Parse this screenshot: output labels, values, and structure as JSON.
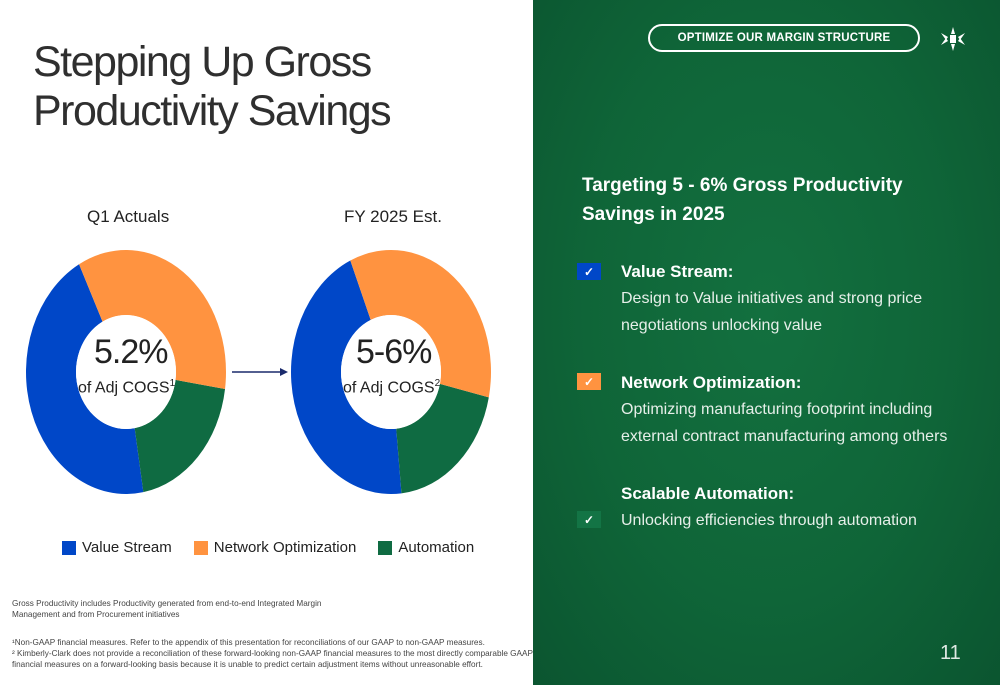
{
  "slide": {
    "title_line1": "Stepping Up Gross",
    "title_line2": "Productivity Savings",
    "page_number": "11"
  },
  "colors": {
    "value_stream": "#0047c8",
    "network_optimization": "#ff9340",
    "automation": "#0f6b42",
    "panel_green": "#0f6538"
  },
  "chart_data": [
    {
      "type": "pie",
      "title": "Q1 Actuals",
      "center_value": "5.2%",
      "center_label": "of Adj COGS",
      "footnote_marker": "1",
      "categories": [
        "Value Stream",
        "Network Optimization",
        "Automation"
      ],
      "values": [
        45,
        35,
        20
      ]
    },
    {
      "type": "pie",
      "title": "FY 2025 Est.",
      "center_value": "5-6%",
      "center_label": "of Adj COGS",
      "footnote_marker": "2",
      "categories": [
        "Value Stream",
        "Network Optimization",
        "Automation"
      ],
      "values": [
        45,
        35,
        20
      ]
    }
  ],
  "legend": [
    "Value Stream",
    "Network Optimization",
    "Automation"
  ],
  "footnotes": {
    "gross_productivity": "Gross Productivity includes Productivity generated from end-to-end Integrated Margin",
    "gross_productivity_2": "Management and from Procurement initiatives",
    "note1": "¹Non-GAAP financial measures. Refer to the appendix of this presentation for reconciliations of our GAAP to non-GAAP measures.",
    "note2": "² Kimberly-Clark does not provide a reconciliation of these forward-looking non-GAAP financial measures to the most directly comparable GAAP",
    "note2b": "financial measures on a forward-looking basis because it is unable to predict certain adjustment items without unreasonable effort."
  },
  "panel": {
    "pill_label": "OPTIMIZE OUR MARGIN STRUCTURE",
    "logo_icon": "kimberly-clark-logo-icon",
    "heading": "Targeting 5 - 6% Gross Productivity Savings in 2025",
    "items": [
      {
        "title": "Value Stream:",
        "desc": "Design to Value initiatives and strong price negotiations unlocking value",
        "check_icon": "check-icon"
      },
      {
        "title": "Network Optimization:",
        "desc": "Optimizing manufacturing footprint including external contract manufacturing among others",
        "check_icon": "check-icon"
      },
      {
        "title": "Scalable Automation:",
        "desc": "Unlocking efficiencies through automation",
        "check_icon": "check-icon"
      }
    ]
  }
}
